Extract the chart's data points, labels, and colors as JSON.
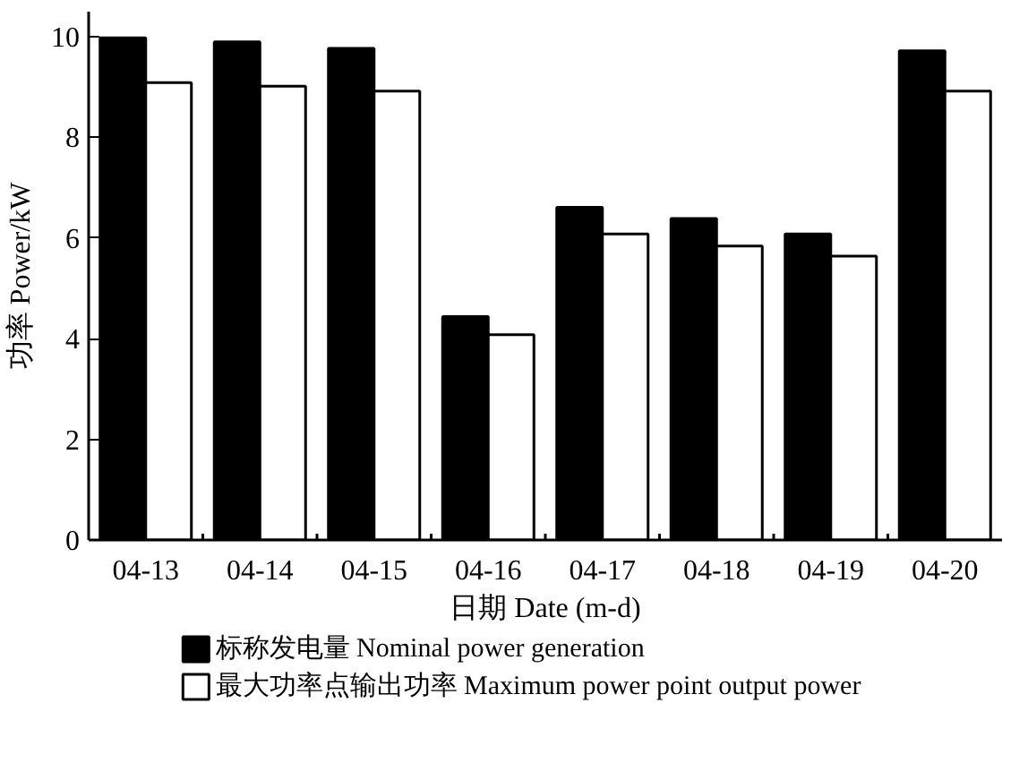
{
  "chart_data": {
    "type": "bar",
    "xlabel": "日期 Date (m-d)",
    "ylabel": "功率 Power/kW",
    "categories": [
      "04-13",
      "04-14",
      "04-15",
      "04-16",
      "04-17",
      "04-18",
      "04-19",
      "04-20"
    ],
    "series": [
      {
        "name": "标称发电量 Nominal power generation",
        "color": "#000000",
        "values": [
          9.98,
          9.9,
          9.77,
          4.44,
          6.61,
          6.39,
          6.08,
          9.72
        ]
      },
      {
        "name": "最大功率点输出功率 Maximum power point output power",
        "color": "#ffffff",
        "values": [
          9.09,
          9.02,
          8.92,
          4.08,
          6.08,
          5.84,
          5.64,
          8.92
        ]
      }
    ],
    "ylim": [
      0,
      10.5
    ],
    "yticks": [
      0,
      2,
      4,
      6,
      8,
      10
    ],
    "grid": false,
    "legend": "bottom"
  }
}
